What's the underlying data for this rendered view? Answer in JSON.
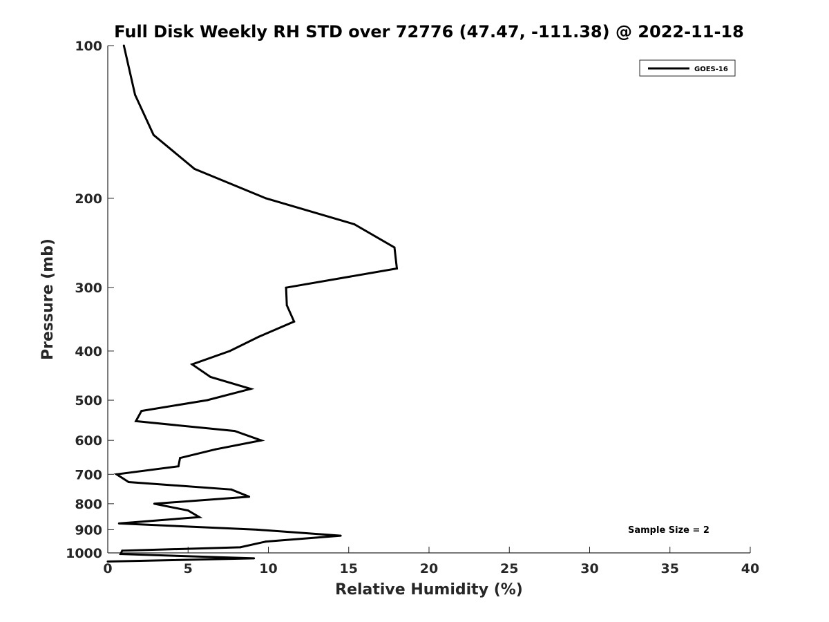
{
  "chart_data": {
    "type": "line",
    "title": "Full Disk Weekly RH STD over 72776 (47.47, -111.38) @ 2022-11-18",
    "xlabel": "Relative Humidity (%)",
    "ylabel": "Pressure (mb)",
    "xlim": [
      0,
      40
    ],
    "ylim": [
      100,
      1000
    ],
    "y_scale": "log",
    "y_reversed": true,
    "grid": false,
    "x_ticks": [
      0,
      5,
      10,
      15,
      20,
      25,
      30,
      35,
      40
    ],
    "y_ticks": [
      100,
      200,
      300,
      400,
      500,
      600,
      700,
      800,
      900,
      1000
    ],
    "legend": {
      "position": "top-right",
      "entries": [
        "GOES-16"
      ]
    },
    "annotations": [
      {
        "text": "Sample Size = 2",
        "position": "bottom-right"
      }
    ],
    "series": [
      {
        "name": "GOES-16",
        "color": "#000000",
        "points": [
          {
            "x": 1.0,
            "y": 100
          },
          {
            "x": 1.7,
            "y": 125
          },
          {
            "x": 2.85,
            "y": 150
          },
          {
            "x": 5.4,
            "y": 175
          },
          {
            "x": 9.85,
            "y": 200
          },
          {
            "x": 15.35,
            "y": 225
          },
          {
            "x": 17.85,
            "y": 250
          },
          {
            "x": 18.0,
            "y": 275
          },
          {
            "x": 11.1,
            "y": 300
          },
          {
            "x": 11.15,
            "y": 325
          },
          {
            "x": 11.6,
            "y": 350
          },
          {
            "x": 9.4,
            "y": 375
          },
          {
            "x": 7.6,
            "y": 400
          },
          {
            "x": 5.25,
            "y": 425
          },
          {
            "x": 6.4,
            "y": 450
          },
          {
            "x": 8.9,
            "y": 475
          },
          {
            "x": 6.2,
            "y": 500
          },
          {
            "x": 2.1,
            "y": 525
          },
          {
            "x": 1.75,
            "y": 550
          },
          {
            "x": 7.9,
            "y": 575
          },
          {
            "x": 9.55,
            "y": 600
          },
          {
            "x": 6.7,
            "y": 625
          },
          {
            "x": 4.5,
            "y": 650
          },
          {
            "x": 4.4,
            "y": 675
          },
          {
            "x": 0.55,
            "y": 700
          },
          {
            "x": 1.3,
            "y": 725
          },
          {
            "x": 7.7,
            "y": 750
          },
          {
            "x": 8.8,
            "y": 775
          },
          {
            "x": 2.9,
            "y": 800
          },
          {
            "x": 5.0,
            "y": 825
          },
          {
            "x": 5.7,
            "y": 850
          },
          {
            "x": 0.7,
            "y": 875
          },
          {
            "x": 9.3,
            "y": 900
          },
          {
            "x": 14.5,
            "y": 925
          },
          {
            "x": 9.85,
            "y": 950
          },
          {
            "x": 8.25,
            "y": 975
          },
          {
            "x": 0.9,
            "y": 990
          },
          {
            "x": 0.8,
            "y": 1005
          },
          {
            "x": 9.1,
            "y": 1025
          },
          {
            "x": 0.0,
            "y": 1040
          }
        ]
      }
    ]
  }
}
